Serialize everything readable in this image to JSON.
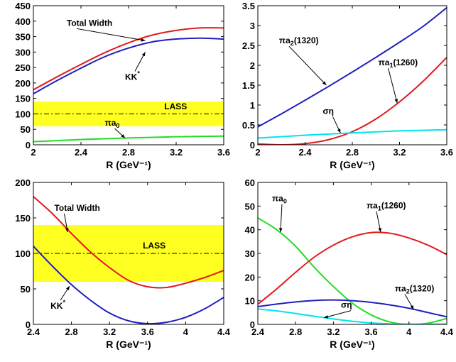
{
  "colors": {
    "red": "#e41a1c",
    "blue": "#1f1fbf",
    "green": "#22dd22",
    "cyan": "#00e5ee",
    "lass_band": "#ffff22"
  },
  "chart_data": [
    {
      "type": "line",
      "xlabel": "R (GeV⁻¹)",
      "ylabel": "",
      "xlim": [
        2,
        3.6
      ],
      "ylim": [
        0,
        450
      ],
      "xticks": [
        "2",
        "2.4",
        "2.8",
        "3.2",
        "3.6"
      ],
      "yticks": [
        "0",
        "50",
        "100",
        "150",
        "200",
        "250",
        "300",
        "350",
        "400",
        "450"
      ],
      "band": {
        "label": "LASS",
        "low": 60,
        "high": 140,
        "center": 100
      },
      "series": [
        {
          "name": "Total Width",
          "color_key": "red",
          "x": [
            2,
            2.2,
            2.4,
            2.6,
            2.8,
            3.0,
            3.2,
            3.4,
            3.6
          ],
          "y": [
            178,
            220,
            260,
            298,
            330,
            355,
            370,
            378,
            378
          ]
        },
        {
          "name": "KK*",
          "color_key": "blue",
          "x": [
            2,
            2.2,
            2.4,
            2.6,
            2.8,
            3.0,
            3.2,
            3.4,
            3.6
          ],
          "y": [
            165,
            208,
            248,
            285,
            313,
            333,
            342,
            345,
            342
          ]
        },
        {
          "name": "πa0",
          "color_key": "green",
          "x": [
            2,
            2.4,
            2.8,
            3.2,
            3.6
          ],
          "y": [
            10,
            17,
            22,
            26,
            28
          ]
        }
      ],
      "annotations": [
        {
          "text": "Total Width",
          "text_x": 2.28,
          "text_y": 385,
          "arrow_x": 2.94,
          "arrow_y": 337
        },
        {
          "text": "KK*",
          "text_x": 2.77,
          "text_y": 210,
          "arrow_x": 2.94,
          "arrow_y": 300
        },
        {
          "text": "LASS",
          "text_x": 3.1,
          "text_y": 115,
          "arrow_x": null,
          "arrow_y": null
        },
        {
          "text": "πa0",
          "text_x": 2.6,
          "text_y": 62,
          "arrow_x": 2.77,
          "arrow_y": 22
        }
      ]
    },
    {
      "type": "line",
      "xlabel": "R (GeV⁻¹)",
      "ylabel": "",
      "xlim": [
        2,
        3.6
      ],
      "ylim": [
        0,
        3.5
      ],
      "xticks": [
        "2",
        "2.4",
        "2.8",
        "3.2",
        "3.6"
      ],
      "yticks": [
        "0",
        "0.5",
        "1",
        "1.5",
        "2",
        "2.5",
        "3",
        "3.5"
      ],
      "series": [
        {
          "name": "πa2(1320)",
          "color_key": "blue",
          "x": [
            2,
            2.2,
            2.4,
            2.6,
            2.8,
            3.0,
            3.2,
            3.4,
            3.6
          ],
          "y": [
            0.45,
            0.78,
            1.12,
            1.47,
            1.83,
            2.2,
            2.58,
            2.98,
            3.45
          ]
        },
        {
          "name": "πa1(1260)",
          "color_key": "red",
          "x": [
            2,
            2.2,
            2.4,
            2.6,
            2.8,
            3.0,
            3.2,
            3.4,
            3.6
          ],
          "y": [
            0.02,
            0.0,
            0.03,
            0.13,
            0.33,
            0.65,
            1.08,
            1.6,
            2.2
          ]
        },
        {
          "name": "ση",
          "color_key": "cyan",
          "x": [
            2,
            2.4,
            2.8,
            3.2,
            3.6
          ],
          "y": [
            0.17,
            0.24,
            0.3,
            0.35,
            0.38
          ]
        }
      ],
      "annotations": [
        {
          "text": "πa2(1320)",
          "text_x": 2.18,
          "text_y": 2.55,
          "arrow_x": 2.58,
          "arrow_y": 1.5
        },
        {
          "text": "πa1(1260)",
          "text_x": 3.02,
          "text_y": 2.0,
          "arrow_x": 3.18,
          "arrow_y": 1.05
        },
        {
          "text": "ση",
          "text_x": 2.55,
          "text_y": 0.78,
          "arrow_x": 2.7,
          "arrow_y": 0.3
        }
      ]
    },
    {
      "type": "line",
      "xlabel": "R (GeV⁻¹)",
      "ylabel": "",
      "xlim": [
        2.4,
        4.4
      ],
      "ylim": [
        0,
        200
      ],
      "xticks": [
        "2.4",
        "2.8",
        "3.2",
        "3.6",
        "4",
        "4.4"
      ],
      "yticks": [
        "0",
        "50",
        "100",
        "150",
        "200"
      ],
      "band": {
        "label": "LASS",
        "low": 60,
        "high": 140,
        "center": 100
      },
      "series": [
        {
          "name": "Total Width",
          "color_key": "red",
          "x": [
            2.4,
            2.6,
            2.8,
            3.0,
            3.2,
            3.4,
            3.6,
            3.8,
            4.0,
            4.2,
            4.4
          ],
          "y": [
            180,
            156,
            128,
            102,
            80,
            62,
            53,
            52,
            58,
            66,
            76
          ]
        },
        {
          "name": "KK*",
          "color_key": "blue",
          "x": [
            2.4,
            2.6,
            2.8,
            3.0,
            3.2,
            3.4,
            3.6,
            3.8,
            4.0,
            4.2,
            4.4
          ],
          "y": [
            110,
            82,
            56,
            34,
            16,
            5,
            1,
            3,
            10,
            22,
            38
          ]
        }
      ],
      "annotations": [
        {
          "text": "Total Width",
          "text_x": 2.62,
          "text_y": 160,
          "arrow_x": 2.76,
          "arrow_y": 130
        },
        {
          "text": "LASS",
          "text_x": 3.55,
          "text_y": 107,
          "arrow_x": null,
          "arrow_y": null
        },
        {
          "text": "KK*",
          "text_x": 2.58,
          "text_y": 22,
          "arrow_x": 2.78,
          "arrow_y": 54
        }
      ]
    },
    {
      "type": "line",
      "xlabel": "R (GeV⁻¹)",
      "ylabel": "",
      "xlim": [
        2.4,
        4.4
      ],
      "ylim": [
        0,
        60
      ],
      "xticks": [
        "2.4",
        "2.8",
        "3.2",
        "3.6",
        "4",
        "4.4"
      ],
      "yticks": [
        "0",
        "10",
        "20",
        "30",
        "40",
        "50",
        "60"
      ],
      "series": [
        {
          "name": "πa0",
          "color_key": "green",
          "x": [
            2.4,
            2.6,
            2.8,
            3.0,
            3.2,
            3.4,
            3.6,
            3.8,
            4.0,
            4.2,
            4.4
          ],
          "y": [
            45,
            40,
            33,
            24,
            16,
            9,
            4,
            1,
            0,
            0.5,
            2.5
          ]
        },
        {
          "name": "πa1(1260)",
          "color_key": "red",
          "x": [
            2.4,
            2.6,
            2.8,
            3.0,
            3.2,
            3.4,
            3.6,
            3.8,
            4.0,
            4.2,
            4.4
          ],
          "y": [
            8.5,
            15,
            22,
            28.5,
            33.5,
            37,
            38.8,
            38.5,
            36.5,
            33.5,
            29.5
          ]
        },
        {
          "name": "πa2(1320)",
          "color_key": "blue",
          "x": [
            2.4,
            2.6,
            2.8,
            3.0,
            3.2,
            3.4,
            3.6,
            3.8,
            4.0,
            4.2,
            4.4
          ],
          "y": [
            7.5,
            8.6,
            9.5,
            10.1,
            10.3,
            10.0,
            9.3,
            8.2,
            6.8,
            5.0,
            3.2
          ]
        },
        {
          "name": "ση",
          "color_key": "cyan",
          "x": [
            2.4,
            2.6,
            2.8,
            3.0,
            3.2,
            3.4,
            3.6,
            3.8,
            4.0,
            4.2,
            4.4
          ],
          "y": [
            6.5,
            5.7,
            4.6,
            3.4,
            2.3,
            1.3,
            0.6,
            0.2,
            0.1,
            0.1,
            0.1
          ]
        }
      ],
      "annotations": [
        {
          "text": "πa0",
          "text_x": 2.55,
          "text_y": 52,
          "arrow_x": 2.64,
          "arrow_y": 39
        },
        {
          "text": "πa1(1260)",
          "text_x": 3.55,
          "text_y": 49,
          "arrow_x": 3.7,
          "arrow_y": 39
        },
        {
          "text": "πa2(1320)",
          "text_x": 3.85,
          "text_y": 14,
          "arrow_x": 4.05,
          "arrow_y": 6.3
        },
        {
          "text": "ση",
          "text_x": 3.28,
          "text_y": 7,
          "arrow_x": 3.1,
          "arrow_y": 2.8
        }
      ]
    }
  ]
}
